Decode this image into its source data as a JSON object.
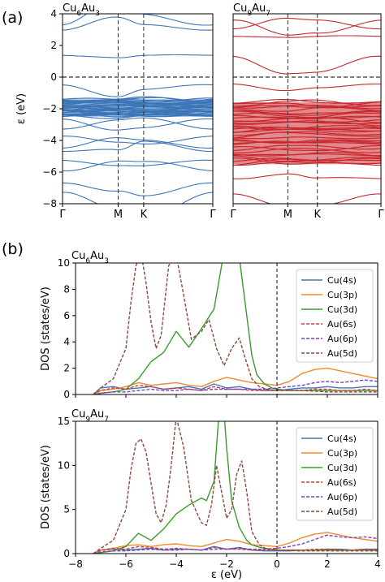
{
  "panel_labels": {
    "a": "(a)",
    "b": "(b)"
  },
  "chart_data": [
    {
      "id": "bands_cu6au3",
      "type": "line",
      "title": "Cu6Au3",
      "title_parts": {
        "base1": "Cu",
        "sub1": "6",
        "base2": "Au",
        "sub2": "3"
      },
      "ylabel": "ε (eV)",
      "ylim": [
        -8,
        4
      ],
      "yticks": [
        "4",
        "2",
        "0",
        "−2",
        "−4",
        "−6",
        "−8"
      ],
      "xticks": [
        "Γ",
        "M",
        "K",
        "Γ"
      ],
      "high_symmetry_points": [
        0,
        0.37,
        0.54,
        1
      ],
      "fermi_level": 0,
      "color": "#3d77b8",
      "dense_bands_range": [
        -2.5,
        -1.4
      ],
      "band_energies_at_gamma": [
        3.3,
        2.9,
        1.3,
        -0.5,
        -1.4,
        -1.6,
        -1.8,
        -2.0,
        -2.2,
        -2.4,
        -2.6,
        -3.2,
        -3.7,
        -4.5,
        -4.8,
        -5.3,
        -5.9,
        -6.6,
        -7.2
      ]
    },
    {
      "id": "bands_cu9au7",
      "type": "line",
      "title": "Cu9Au7",
      "title_parts": {
        "base1": "Cu",
        "sub1": "9",
        "base2": "Au",
        "sub2": "7"
      },
      "ylim": [
        -8,
        4
      ],
      "xticks": [
        "Γ",
        "M",
        "K",
        "Γ"
      ],
      "high_symmetry_points": [
        0,
        0.37,
        0.57,
        1
      ],
      "fermi_level": 0,
      "color": "#c8282e",
      "dense_bands_range": [
        -5.5,
        -1.6
      ],
      "band_energies_at_gamma": [
        3.6,
        3.0,
        2.5,
        1.3,
        -0.4,
        -1.6,
        -1.9,
        -2.2,
        -2.5,
        -2.8,
        -3.1,
        -3.4,
        -3.8,
        -4.3,
        -5.0,
        -5.6,
        -6.4,
        -7.3
      ]
    },
    {
      "id": "dos_cu6au3",
      "type": "line",
      "title": "Cu6Au3",
      "title_parts": {
        "base1": "Cu",
        "sub1": "6",
        "base2": "Au",
        "sub2": "3"
      },
      "ylabel": "DOS (states/eV)",
      "xlim": [
        -8,
        4
      ],
      "ylim": [
        0,
        10
      ],
      "yticks": [
        "0",
        "2",
        "4",
        "6",
        "8",
        "10"
      ],
      "fermi_level": 0,
      "legend_position": "right",
      "series": [
        {
          "name": "Cu(4s)",
          "color": "#3d77b8",
          "dashed": false,
          "x": [
            -7.3,
            -7,
            -6.5,
            -6,
            -5.5,
            -5,
            -4.5,
            -4,
            -3.5,
            -3,
            -2.5,
            -2,
            -1.5,
            -1,
            -0.5,
            0,
            0.5,
            1,
            1.5,
            2,
            2.5,
            3,
            3.5,
            4
          ],
          "values": [
            0,
            0.5,
            0.6,
            0.4,
            0.5,
            0.6,
            0.4,
            0.5,
            0.6,
            0.4,
            0.8,
            0.5,
            0.6,
            0.4,
            0.3,
            0.3,
            0.4,
            0.5,
            0.5,
            0.6,
            0.5,
            0.5,
            0.6,
            0.6
          ]
        },
        {
          "name": "Cu(3p)",
          "color": "#f08a30",
          "dashed": false,
          "x": [
            -7.3,
            -7,
            -6.5,
            -6,
            -5.5,
            -5,
            -4.5,
            -4,
            -3.5,
            -3,
            -2.5,
            -2,
            -1.5,
            -1,
            -0.5,
            0,
            0.5,
            1,
            1.5,
            2,
            2.5,
            3,
            3.5,
            4
          ],
          "values": [
            0,
            0.3,
            0.4,
            0.6,
            0.9,
            0.7,
            0.8,
            0.9,
            0.7,
            0.6,
            1.0,
            1.3,
            1.1,
            0.9,
            0.8,
            0.7,
            1.0,
            1.6,
            1.9,
            2.0,
            1.8,
            1.6,
            1.4,
            1.2
          ]
        },
        {
          "name": "Cu(3d)",
          "color": "#3a9c2c",
          "dashed": false,
          "x": [
            -7.3,
            -7,
            -6.5,
            -6,
            -5.5,
            -5,
            -4.5,
            -4,
            -3.5,
            -3,
            -2.5,
            -2,
            -1.5,
            -1.2,
            -1,
            -0.8,
            -0.5,
            -0.2,
            0,
            0.5,
            1,
            2,
            3,
            4
          ],
          "values": [
            0,
            0.1,
            0.2,
            0.4,
            1.2,
            2.5,
            3.2,
            4.8,
            3.6,
            5.0,
            6.5,
            12,
            10.5,
            6,
            3,
            1.5,
            0.8,
            0.5,
            0.4,
            0.3,
            0.3,
            0.3,
            0.3,
            0.3
          ]
        },
        {
          "name": "Au(6s)",
          "color": "#d4393a",
          "dashed": true,
          "x": [
            -7.3,
            -7,
            -6.5,
            -6,
            -5.5,
            -5,
            -4.5,
            -4,
            -3.5,
            -3,
            -2.5,
            -2,
            -1.5,
            -1,
            -0.5,
            0,
            0.5,
            1,
            1.5,
            2,
            2.5,
            3,
            3.5,
            4
          ],
          "values": [
            0,
            0.3,
            0.5,
            0.4,
            0.7,
            0.6,
            0.4,
            0.5,
            0.4,
            0.3,
            0.6,
            0.4,
            0.4,
            0.3,
            0.3,
            0.3,
            0.3,
            0.3,
            0.4,
            0.4,
            0.3,
            0.3,
            0.4,
            0.3
          ]
        },
        {
          "name": "Au(6p)",
          "color": "#7a3fc4",
          "dashed": true,
          "x": [
            -7.3,
            -7,
            -6.5,
            -6,
            -5.5,
            -5,
            -4.5,
            -4,
            -3.5,
            -3,
            -2.5,
            -2,
            -1.5,
            -1,
            -0.5,
            0,
            0.5,
            1,
            1.5,
            2,
            2.5,
            3,
            3.5,
            4
          ],
          "values": [
            0,
            0.1,
            0.2,
            0.2,
            0.3,
            0.4,
            0.3,
            0.3,
            0.4,
            0.3,
            0.4,
            0.4,
            0.4,
            0.4,
            0.4,
            0.5,
            0.6,
            0.7,
            0.9,
            1.0,
            0.9,
            1.0,
            1.1,
            1.0
          ]
        },
        {
          "name": "Au(5d)",
          "color": "#8b4a3a",
          "dashed": true,
          "x": [
            -7.3,
            -7,
            -6.5,
            -6,
            -5.8,
            -5.6,
            -5.4,
            -5.2,
            -5,
            -4.8,
            -4.6,
            -4.3,
            -4,
            -3.7,
            -3.4,
            -3,
            -2.7,
            -2.4,
            -2.1,
            -1.8,
            -1.5,
            -1.3,
            -1,
            -0.7,
            -0.4,
            0,
            1,
            2,
            3,
            4
          ],
          "values": [
            0,
            0.5,
            1.2,
            3.5,
            7,
            9.8,
            10.8,
            8.5,
            5.5,
            3.5,
            4.5,
            9.8,
            10.6,
            7.5,
            4.2,
            4.8,
            5.7,
            3.5,
            2.2,
            3.5,
            4.3,
            3,
            1.2,
            0.6,
            0.4,
            0.3,
            0.3,
            0.2,
            0.2,
            0.2
          ]
        }
      ]
    },
    {
      "id": "dos_cu9au7",
      "type": "line",
      "title": "Cu9Au7",
      "title_parts": {
        "base1": "Cu",
        "sub1": "9",
        "base2": "Au",
        "sub2": "7"
      },
      "ylabel": "DOS (states/eV)",
      "xlabel": "ε (eV)",
      "xlim": [
        -8,
        4
      ],
      "ylim": [
        0,
        15
      ],
      "yticks": [
        "0",
        "5",
        "10",
        "15"
      ],
      "xticks": [
        "−8",
        "−6",
        "−4",
        "−2",
        "0",
        "2",
        "4"
      ],
      "fermi_level": 0,
      "legend_position": "right",
      "series": [
        {
          "name": "Cu(4s)",
          "color": "#3d77b8",
          "dashed": false,
          "x": [
            -7.3,
            -7,
            -6.5,
            -6,
            -5.5,
            -5,
            -4.5,
            -4,
            -3.5,
            -3,
            -2.5,
            -2,
            -1.5,
            -1,
            -0.5,
            0,
            0.5,
            1,
            1.5,
            2,
            2.5,
            3,
            3.5,
            4
          ],
          "values": [
            0,
            0.4,
            0.5,
            0.4,
            0.5,
            0.6,
            0.4,
            0.5,
            0.5,
            0.4,
            0.8,
            0.5,
            0.7,
            0.4,
            0.3,
            0.3,
            0.3,
            0.4,
            0.4,
            0.5,
            0.5,
            0.4,
            0.5,
            0.5
          ]
        },
        {
          "name": "Cu(3p)",
          "color": "#f08a30",
          "dashed": false,
          "x": [
            -7.3,
            -7,
            -6.5,
            -6,
            -5.5,
            -5,
            -4.5,
            -4,
            -3.5,
            -3,
            -2.5,
            -2,
            -1.5,
            -1,
            -0.5,
            0,
            0.5,
            1,
            1.5,
            2,
            2.5,
            3,
            3.5,
            4
          ],
          "values": [
            0,
            0.4,
            0.6,
            0.9,
            1.0,
            0.8,
            1.0,
            1.1,
            0.9,
            0.8,
            1.2,
            1.6,
            1.4,
            1.0,
            0.9,
            0.8,
            1.2,
            1.8,
            2.2,
            2.4,
            2.1,
            1.8,
            1.6,
            1.4
          ]
        },
        {
          "name": "Cu(3d)",
          "color": "#3a9c2c",
          "dashed": false,
          "x": [
            -7.3,
            -7,
            -6.5,
            -6,
            -5.5,
            -5,
            -4.5,
            -4,
            -3.5,
            -3,
            -2.8,
            -2.5,
            -2.2,
            -2,
            -1.8,
            -1.5,
            -1.2,
            -1,
            -0.8,
            -0.5,
            -0.2,
            0,
            1,
            2,
            3,
            4
          ],
          "values": [
            0,
            0.1,
            0.3,
            0.8,
            2.3,
            1.5,
            2.8,
            4.5,
            5.5,
            6.3,
            6.0,
            8.2,
            20,
            12,
            6,
            3,
            1.5,
            1.0,
            0.8,
            0.6,
            0.5,
            0.4,
            0.4,
            0.4,
            0.4,
            0.4
          ]
        },
        {
          "name": "Au(6s)",
          "color": "#d4393a",
          "dashed": true,
          "x": [
            -7.3,
            -7,
            -6.5,
            -6,
            -5.5,
            -5,
            -4.5,
            -4,
            -3.5,
            -3,
            -2.5,
            -2,
            -1.5,
            -1,
            -0.5,
            0,
            0.5,
            1,
            1.5,
            2,
            2.5,
            3,
            3.5,
            4
          ],
          "values": [
            0,
            0.4,
            0.6,
            0.5,
            0.8,
            0.7,
            0.5,
            0.6,
            0.5,
            0.4,
            0.7,
            0.5,
            0.5,
            0.4,
            0.4,
            0.4,
            0.4,
            0.4,
            0.5,
            0.5,
            0.4,
            0.4,
            0.5,
            0.4
          ]
        },
        {
          "name": "Au(6p)",
          "color": "#7a3fc4",
          "dashed": true,
          "x": [
            -7.3,
            -7,
            -6.5,
            -6,
            -5.5,
            -5,
            -4.5,
            -4,
            -3.5,
            -3,
            -2.5,
            -2,
            -1.5,
            -1,
            -0.5,
            0,
            0.5,
            1,
            1.5,
            2,
            2.5,
            3,
            3.5,
            4
          ],
          "values": [
            0,
            0.2,
            0.3,
            0.3,
            0.4,
            0.5,
            0.4,
            0.4,
            0.5,
            0.4,
            0.5,
            0.5,
            0.6,
            0.5,
            0.5,
            0.6,
            0.8,
            1.1,
            1.6,
            2.1,
            1.9,
            1.8,
            1.9,
            1.7
          ]
        },
        {
          "name": "Au(5d)",
          "color": "#8b4a3a",
          "dashed": true,
          "x": [
            -7.3,
            -7,
            -6.5,
            -6,
            -5.8,
            -5.6,
            -5.4,
            -5.2,
            -5,
            -4.8,
            -4.6,
            -4.4,
            -4.2,
            -4,
            -3.7,
            -3.4,
            -3,
            -2.8,
            -2.6,
            -2.4,
            -2.2,
            -2,
            -1.8,
            -1.6,
            -1.4,
            -1.2,
            -1,
            -0.7,
            -0.4,
            0,
            1,
            2,
            3,
            4
          ],
          "values": [
            0,
            0.6,
            1.5,
            5,
            9.5,
            12.5,
            13,
            11.5,
            8,
            4.5,
            3.5,
            5.5,
            10,
            15.5,
            12,
            6,
            3.5,
            3.2,
            5.5,
            10,
            7,
            4,
            5,
            9,
            10.5,
            7,
            2.5,
            1,
            0.5,
            0.4,
            0.3,
            0.3,
            0.3,
            0.3
          ]
        }
      ]
    }
  ]
}
